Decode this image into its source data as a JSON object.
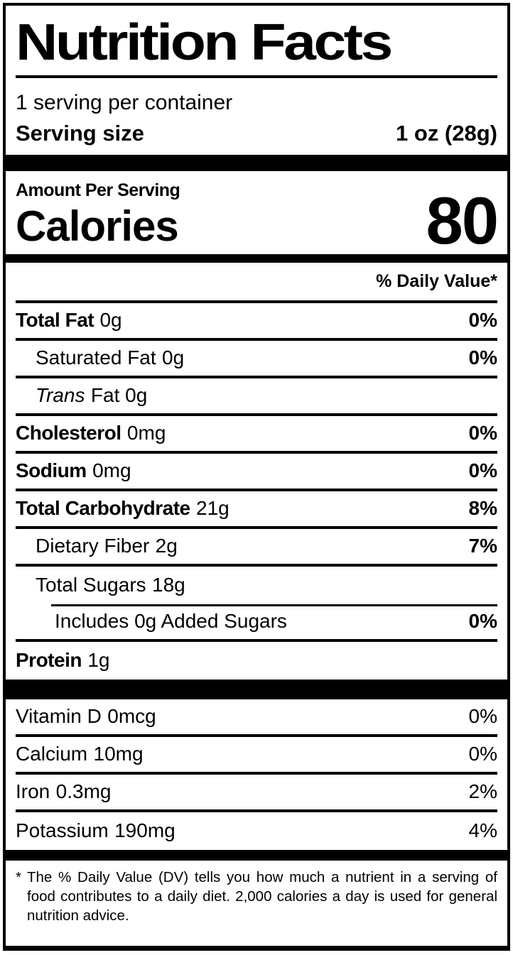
{
  "colors": {
    "ink": "#000000",
    "background": "#ffffff"
  },
  "label": {
    "title": "Nutrition Facts",
    "servings_per_container": "1 serving per container",
    "serving_size_label": "Serving size",
    "serving_size_value": "1 oz (28g)",
    "amount_per_serving": "Amount Per Serving",
    "calories_label": "Calories",
    "calories_value": "80",
    "daily_value_header": "% Daily Value*"
  },
  "nutrients": [
    {
      "name": "Total Fat",
      "amount": "0g",
      "dv": "0%"
    },
    {
      "name": "Saturated Fat",
      "amount": "0g",
      "dv": ""
    },
    {
      "name": "Trans",
      "amount": "Fat 0g",
      "dv": ""
    },
    {
      "name": "Cholesterol",
      "amount": "0mg",
      "dv": "0%"
    },
    {
      "name": "Sodium",
      "amount": "0mg",
      "dv": "0%"
    },
    {
      "name": "Total Carbohydrate",
      "amount": "21g",
      "dv": "8%"
    },
    {
      "name": "Dietary Fiber",
      "amount": "2g",
      "dv": "7%"
    },
    {
      "name": "Total Sugars",
      "amount": "18g",
      "dv": ""
    },
    {
      "name": "Includes 0g Added Sugars",
      "amount": "",
      "dv": "0%"
    },
    {
      "name": "Protein",
      "amount": "1g",
      "dv": ""
    }
  ],
  "nutrients_dv_fix": {
    "saturated_fat_dv": "0%"
  },
  "vitamins": [
    {
      "name": "Vitamin D",
      "amount": "0mcg",
      "dv": "0%"
    },
    {
      "name": "Calcium",
      "amount": "10mg",
      "dv": "0%"
    },
    {
      "name": "Iron",
      "amount": "0.3mg",
      "dv": "2%"
    },
    {
      "name": "Potassium",
      "amount": "190mg",
      "dv": "4%"
    }
  ],
  "footnote": {
    "marker": "*",
    "text": "The % Daily Value (DV) tells you how much a nutrient in a serving of food contributes to a daily diet. 2,000 calories a day is used for general nutrition advice."
  }
}
